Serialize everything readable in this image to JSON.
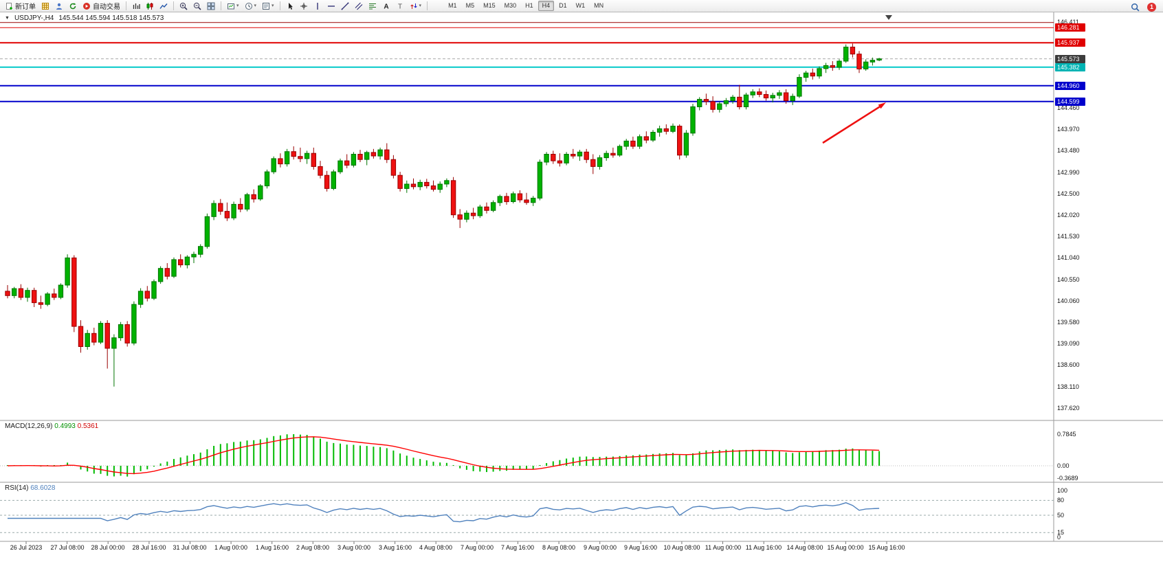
{
  "toolbar": {
    "buttons": [
      {
        "name": "new-order",
        "icon": "doc-plus",
        "label": "新订单"
      },
      {
        "name": "charts",
        "icon": "grid"
      },
      {
        "name": "profiles",
        "icon": "person"
      },
      {
        "name": "refresh",
        "icon": "refresh"
      },
      {
        "name": "auto-trading",
        "icon": "play-red",
        "label": "自动交易"
      },
      {
        "sep": true
      },
      {
        "name": "bar-chart",
        "icon": "bars"
      },
      {
        "name": "candlestick-chart",
        "icon": "candles"
      },
      {
        "name": "line-chart",
        "icon": "line"
      },
      {
        "sep": true
      },
      {
        "name": "zoom-in",
        "icon": "zoom-in"
      },
      {
        "name": "zoom-out",
        "icon": "zoom-out"
      },
      {
        "name": "tile-windows",
        "icon": "tile"
      },
      {
        "sep": true
      },
      {
        "name": "new-chart",
        "icon": "new-chart",
        "dropdown": true
      },
      {
        "name": "auto-scroll",
        "icon": "clock",
        "dropdown": true
      },
      {
        "name": "templates",
        "icon": "template",
        "dropdown": true
      },
      {
        "sep": true
      },
      {
        "name": "cursor",
        "icon": "cursor"
      },
      {
        "name": "crosshair",
        "icon": "crosshair"
      },
      {
        "name": "vertical-line",
        "icon": "vline"
      },
      {
        "name": "horizontal-line",
        "icon": "hline"
      },
      {
        "name": "trendline",
        "icon": "tline"
      },
      {
        "name": "equidistant-channel",
        "icon": "channel"
      },
      {
        "name": "fibonacci",
        "icon": "fibo"
      },
      {
        "name": "text",
        "icon": "textA"
      },
      {
        "name": "text-label",
        "icon": "textT"
      },
      {
        "name": "arrows",
        "icon": "arrows",
        "dropdown": true
      },
      {
        "sep": true
      }
    ],
    "timeframes": {
      "list": [
        "M1",
        "M5",
        "M15",
        "M30",
        "H1",
        "H4",
        "D1",
        "W1",
        "MN"
      ],
      "active": "H4"
    },
    "notification_count": "1"
  },
  "chart": {
    "symbol_period": "USDJPY-,H4",
    "ohlc_text": "145.544 145.594 145.518 145.573"
  },
  "price_axis": {
    "visible_labels": [
      "146.411",
      "144.460",
      "143.970",
      "143.480",
      "142.990",
      "142.500",
      "142.020",
      "141.530",
      "141.040",
      "140.550",
      "140.060",
      "139.580",
      "139.090",
      "138.600",
      "138.110",
      "137.620"
    ],
    "badges": [
      {
        "label": "146.281",
        "price": 146.281,
        "color": "#e00000"
      },
      {
        "label": "145.937",
        "price": 145.937,
        "color": "#e00000"
      },
      {
        "label": "145.573",
        "price": 145.573,
        "color": "#3c3c3c"
      },
      {
        "label": "145.382",
        "price": 145.382,
        "color": "#00b4b4"
      },
      {
        "label": "144.960",
        "price": 144.96,
        "color": "#0000cc"
      },
      {
        "label": "144.599",
        "price": 144.599,
        "color": "#0000cc"
      }
    ]
  },
  "chart_data": {
    "type": "candlestick",
    "symbol": "USDJPY-",
    "timeframe": "H4",
    "ylim": [
      137.62,
      146.411
    ],
    "current_ohlc": {
      "open": 145.544,
      "high": 145.594,
      "low": 145.518,
      "close": 145.573
    },
    "price_lines": [
      {
        "price": 146.4,
        "color": "#990000",
        "width": 1,
        "style": "solid"
      },
      {
        "price": 146.281,
        "color": "#e00000",
        "width": 1,
        "style": "solid"
      },
      {
        "price": 145.937,
        "color": "#e00000",
        "width": 2,
        "style": "solid"
      },
      {
        "price": 145.573,
        "color": "#aaaaaa",
        "width": 1,
        "style": "dashed"
      },
      {
        "price": 145.382,
        "color": "#00c8c8",
        "width": 2,
        "style": "solid"
      },
      {
        "price": 144.96,
        "color": "#0000cc",
        "width": 2,
        "style": "solid"
      },
      {
        "price": 144.599,
        "color": "#0000cc",
        "width": 2,
        "style": "solid"
      }
    ],
    "x_labels": [
      "26 Jul 2023",
      "27 Jul 08:00",
      "28 Jul 00:00",
      "28 Jul 16:00",
      "31 Jul 08:00",
      "1 Aug 00:00",
      "1 Aug 16:00",
      "2 Aug 08:00",
      "3 Aug 00:00",
      "3 Aug 16:00",
      "4 Aug 08:00",
      "7 Aug 00:00",
      "7 Aug 16:00",
      "8 Aug 08:00",
      "9 Aug 00:00",
      "9 Aug 16:00",
      "10 Aug 08:00",
      "11 Aug 00:00",
      "11 Aug 16:00",
      "14 Aug 08:00",
      "15 Aug 00:00",
      "15 Aug 16:00"
    ],
    "candles": [
      [
        140.28,
        140.42,
        140.12,
        140.18
      ],
      [
        140.18,
        140.38,
        140.12,
        140.34
      ],
      [
        140.34,
        140.44,
        140.08,
        140.14
      ],
      [
        140.14,
        140.36,
        140.04,
        140.3
      ],
      [
        140.3,
        140.36,
        139.92,
        140.02
      ],
      [
        140.02,
        140.18,
        139.88,
        139.98
      ],
      [
        139.98,
        140.26,
        139.94,
        140.22
      ],
      [
        140.22,
        140.34,
        140.08,
        140.14
      ],
      [
        140.14,
        140.46,
        140.1,
        140.42
      ],
      [
        140.42,
        141.12,
        140.36,
        141.04
      ],
      [
        141.04,
        141.1,
        139.35,
        139.48
      ],
      [
        139.48,
        139.62,
        138.88,
        139.02
      ],
      [
        139.02,
        139.4,
        138.95,
        139.32
      ],
      [
        139.32,
        139.45,
        139.05,
        139.12
      ],
      [
        139.12,
        139.6,
        139.08,
        139.55
      ],
      [
        139.55,
        139.62,
        138.52,
        138.98
      ],
      [
        138.98,
        139.3,
        138.11,
        139.22
      ],
      [
        139.22,
        139.58,
        139.15,
        139.52
      ],
      [
        139.52,
        139.6,
        139.02,
        139.1
      ],
      [
        139.1,
        140.05,
        139.05,
        139.98
      ],
      [
        139.98,
        140.35,
        139.9,
        140.28
      ],
      [
        140.28,
        140.4,
        140.05,
        140.12
      ],
      [
        140.12,
        140.55,
        140.08,
        140.5
      ],
      [
        140.5,
        140.85,
        140.45,
        140.8
      ],
      [
        140.8,
        140.92,
        140.55,
        140.62
      ],
      [
        140.62,
        141.05,
        140.58,
        141.0
      ],
      [
        141.0,
        141.12,
        140.82,
        140.88
      ],
      [
        140.88,
        141.1,
        140.8,
        141.06
      ],
      [
        141.06,
        141.18,
        140.92,
        141.12
      ],
      [
        141.12,
        141.35,
        141.05,
        141.3
      ],
      [
        141.3,
        142.05,
        141.25,
        141.98
      ],
      [
        141.98,
        142.35,
        141.9,
        142.28
      ],
      [
        142.28,
        142.38,
        142.02,
        142.1
      ],
      [
        142.1,
        142.3,
        141.88,
        141.95
      ],
      [
        141.95,
        142.32,
        141.9,
        142.26
      ],
      [
        142.26,
        142.4,
        142.08,
        142.15
      ],
      [
        142.15,
        142.52,
        142.1,
        142.48
      ],
      [
        142.48,
        142.6,
        142.3,
        142.38
      ],
      [
        142.38,
        142.72,
        142.34,
        142.68
      ],
      [
        142.68,
        143.05,
        142.62,
        143.0
      ],
      [
        143.0,
        143.35,
        142.95,
        143.3
      ],
      [
        143.3,
        143.42,
        143.1,
        143.18
      ],
      [
        143.18,
        143.52,
        143.12,
        143.46
      ],
      [
        143.46,
        143.58,
        143.28,
        143.35
      ],
      [
        143.35,
        143.55,
        143.22,
        143.3
      ],
      [
        143.3,
        143.48,
        143.18,
        143.42
      ],
      [
        143.42,
        143.55,
        143.05,
        143.12
      ],
      [
        143.12,
        143.25,
        142.85,
        142.92
      ],
      [
        142.92,
        143.02,
        142.55,
        142.62
      ],
      [
        142.62,
        143.05,
        142.58,
        143.0
      ],
      [
        143.0,
        143.3,
        142.95,
        143.25
      ],
      [
        143.25,
        143.4,
        143.08,
        143.15
      ],
      [
        143.15,
        143.45,
        143.1,
        143.4
      ],
      [
        143.4,
        143.5,
        143.22,
        143.28
      ],
      [
        143.28,
        143.48,
        143.15,
        143.44
      ],
      [
        143.44,
        143.52,
        143.3,
        143.36
      ],
      [
        143.36,
        143.55,
        143.28,
        143.5
      ],
      [
        143.5,
        143.65,
        143.2,
        143.28
      ],
      [
        143.28,
        143.38,
        142.85,
        142.92
      ],
      [
        142.92,
        143.0,
        142.55,
        142.62
      ],
      [
        142.62,
        142.8,
        142.52,
        142.72
      ],
      [
        142.72,
        142.85,
        142.6,
        142.66
      ],
      [
        142.66,
        142.82,
        142.58,
        142.76
      ],
      [
        142.76,
        142.84,
        142.62,
        142.68
      ],
      [
        142.68,
        142.8,
        142.55,
        142.6
      ],
      [
        142.6,
        142.78,
        142.52,
        142.72
      ],
      [
        142.72,
        142.85,
        142.65,
        142.8
      ],
      [
        142.8,
        142.88,
        141.95,
        142.02
      ],
      [
        142.02,
        142.15,
        141.72,
        141.92
      ],
      [
        141.92,
        142.12,
        141.85,
        142.06
      ],
      [
        142.06,
        142.18,
        141.92,
        142.0
      ],
      [
        142.0,
        142.25,
        141.95,
        142.2
      ],
      [
        142.2,
        142.3,
        142.05,
        142.12
      ],
      [
        142.12,
        142.35,
        142.08,
        142.3
      ],
      [
        142.3,
        142.48,
        142.22,
        142.44
      ],
      [
        142.44,
        142.52,
        142.25,
        142.32
      ],
      [
        142.32,
        142.55,
        142.28,
        142.5
      ],
      [
        142.5,
        142.58,
        142.3,
        142.36
      ],
      [
        142.36,
        142.52,
        142.25,
        142.3
      ],
      [
        142.3,
        142.45,
        142.22,
        142.4
      ],
      [
        142.4,
        143.28,
        142.35,
        143.22
      ],
      [
        143.22,
        143.45,
        143.15,
        143.4
      ],
      [
        143.4,
        143.48,
        143.18,
        143.25
      ],
      [
        143.25,
        143.42,
        143.12,
        143.2
      ],
      [
        143.2,
        143.45,
        143.15,
        143.4
      ],
      [
        143.4,
        143.52,
        143.3,
        143.36
      ],
      [
        143.36,
        143.5,
        143.25,
        143.45
      ],
      [
        143.45,
        143.52,
        143.2,
        143.28
      ],
      [
        143.28,
        143.4,
        142.95,
        143.12
      ],
      [
        143.12,
        143.38,
        143.05,
        143.32
      ],
      [
        143.32,
        143.48,
        143.25,
        143.42
      ],
      [
        143.42,
        143.55,
        143.32,
        143.38
      ],
      [
        143.38,
        143.62,
        143.34,
        143.58
      ],
      [
        143.58,
        143.75,
        143.5,
        143.7
      ],
      [
        143.7,
        143.8,
        143.52,
        143.58
      ],
      [
        143.58,
        143.85,
        143.52,
        143.8
      ],
      [
        143.8,
        143.92,
        143.65,
        143.72
      ],
      [
        143.72,
        143.95,
        143.68,
        143.9
      ],
      [
        143.9,
        144.05,
        143.8,
        143.98
      ],
      [
        143.98,
        144.08,
        143.85,
        143.92
      ],
      [
        143.92,
        144.1,
        143.88,
        144.04
      ],
      [
        144.04,
        144.08,
        143.28,
        143.38
      ],
      [
        143.38,
        143.95,
        143.32,
        143.88
      ],
      [
        143.88,
        144.55,
        143.82,
        144.48
      ],
      [
        144.48,
        144.7,
        144.4,
        144.65
      ],
      [
        144.65,
        144.78,
        144.52,
        144.6
      ],
      [
        144.6,
        144.72,
        144.35,
        144.42
      ],
      [
        144.42,
        144.6,
        144.35,
        144.55
      ],
      [
        144.55,
        144.68,
        144.48,
        144.62
      ],
      [
        144.62,
        144.75,
        144.55,
        144.7
      ],
      [
        144.7,
        144.98,
        144.42,
        144.48
      ],
      [
        144.48,
        144.8,
        144.42,
        144.75
      ],
      [
        144.75,
        144.88,
        144.68,
        144.82
      ],
      [
        144.82,
        144.9,
        144.7,
        144.76
      ],
      [
        144.76,
        144.85,
        144.62,
        144.68
      ],
      [
        144.68,
        144.8,
        144.58,
        144.74
      ],
      [
        144.74,
        144.86,
        144.66,
        144.8
      ],
      [
        144.8,
        144.88,
        144.55,
        144.62
      ],
      [
        144.62,
        144.78,
        144.52,
        144.72
      ],
      [
        144.72,
        145.22,
        144.68,
        145.15
      ],
      [
        145.15,
        145.3,
        145.05,
        145.25
      ],
      [
        145.25,
        145.35,
        145.1,
        145.18
      ],
      [
        145.18,
        145.4,
        145.12,
        145.35
      ],
      [
        145.35,
        145.48,
        145.25,
        145.42
      ],
      [
        145.42,
        145.52,
        145.3,
        145.38
      ],
      [
        145.38,
        145.56,
        145.32,
        145.52
      ],
      [
        145.52,
        145.9,
        145.48,
        145.84
      ],
      [
        145.84,
        145.92,
        145.6,
        145.68
      ],
      [
        145.68,
        145.75,
        145.25,
        145.34
      ],
      [
        145.34,
        145.56,
        145.3,
        145.5
      ],
      [
        145.5,
        145.6,
        145.42,
        145.54
      ],
      [
        145.544,
        145.594,
        145.518,
        145.573
      ]
    ]
  },
  "indicators": {
    "macd": {
      "name": "MACD(12,26,9)",
      "main": "0.4993",
      "signal": "0.5361",
      "fast": 12,
      "slow": 26,
      "signal_period": 9,
      "axis_labels": [
        "0.7845",
        "0.00",
        "-0.3689"
      ]
    },
    "rsi": {
      "name": "RSI(14)",
      "value": "68.6028",
      "period": 14,
      "levels": [
        80,
        50,
        15
      ],
      "axis_labels": [
        "100",
        "80",
        "50",
        "15",
        "0"
      ]
    }
  },
  "annotations": {
    "arrow": {
      "from": [
        1197,
        190
      ],
      "to": [
        1288,
        132
      ],
      "color": "#ee1010"
    }
  },
  "colors": {
    "up": "#00b200",
    "up_border": "#007500",
    "down": "#ee1111",
    "down_border": "#990000",
    "macd_hist": "#00bb00",
    "macd_signal": "#ff0000",
    "rsi_line": "#4f81bd",
    "separator": "#9a9a9a"
  }
}
